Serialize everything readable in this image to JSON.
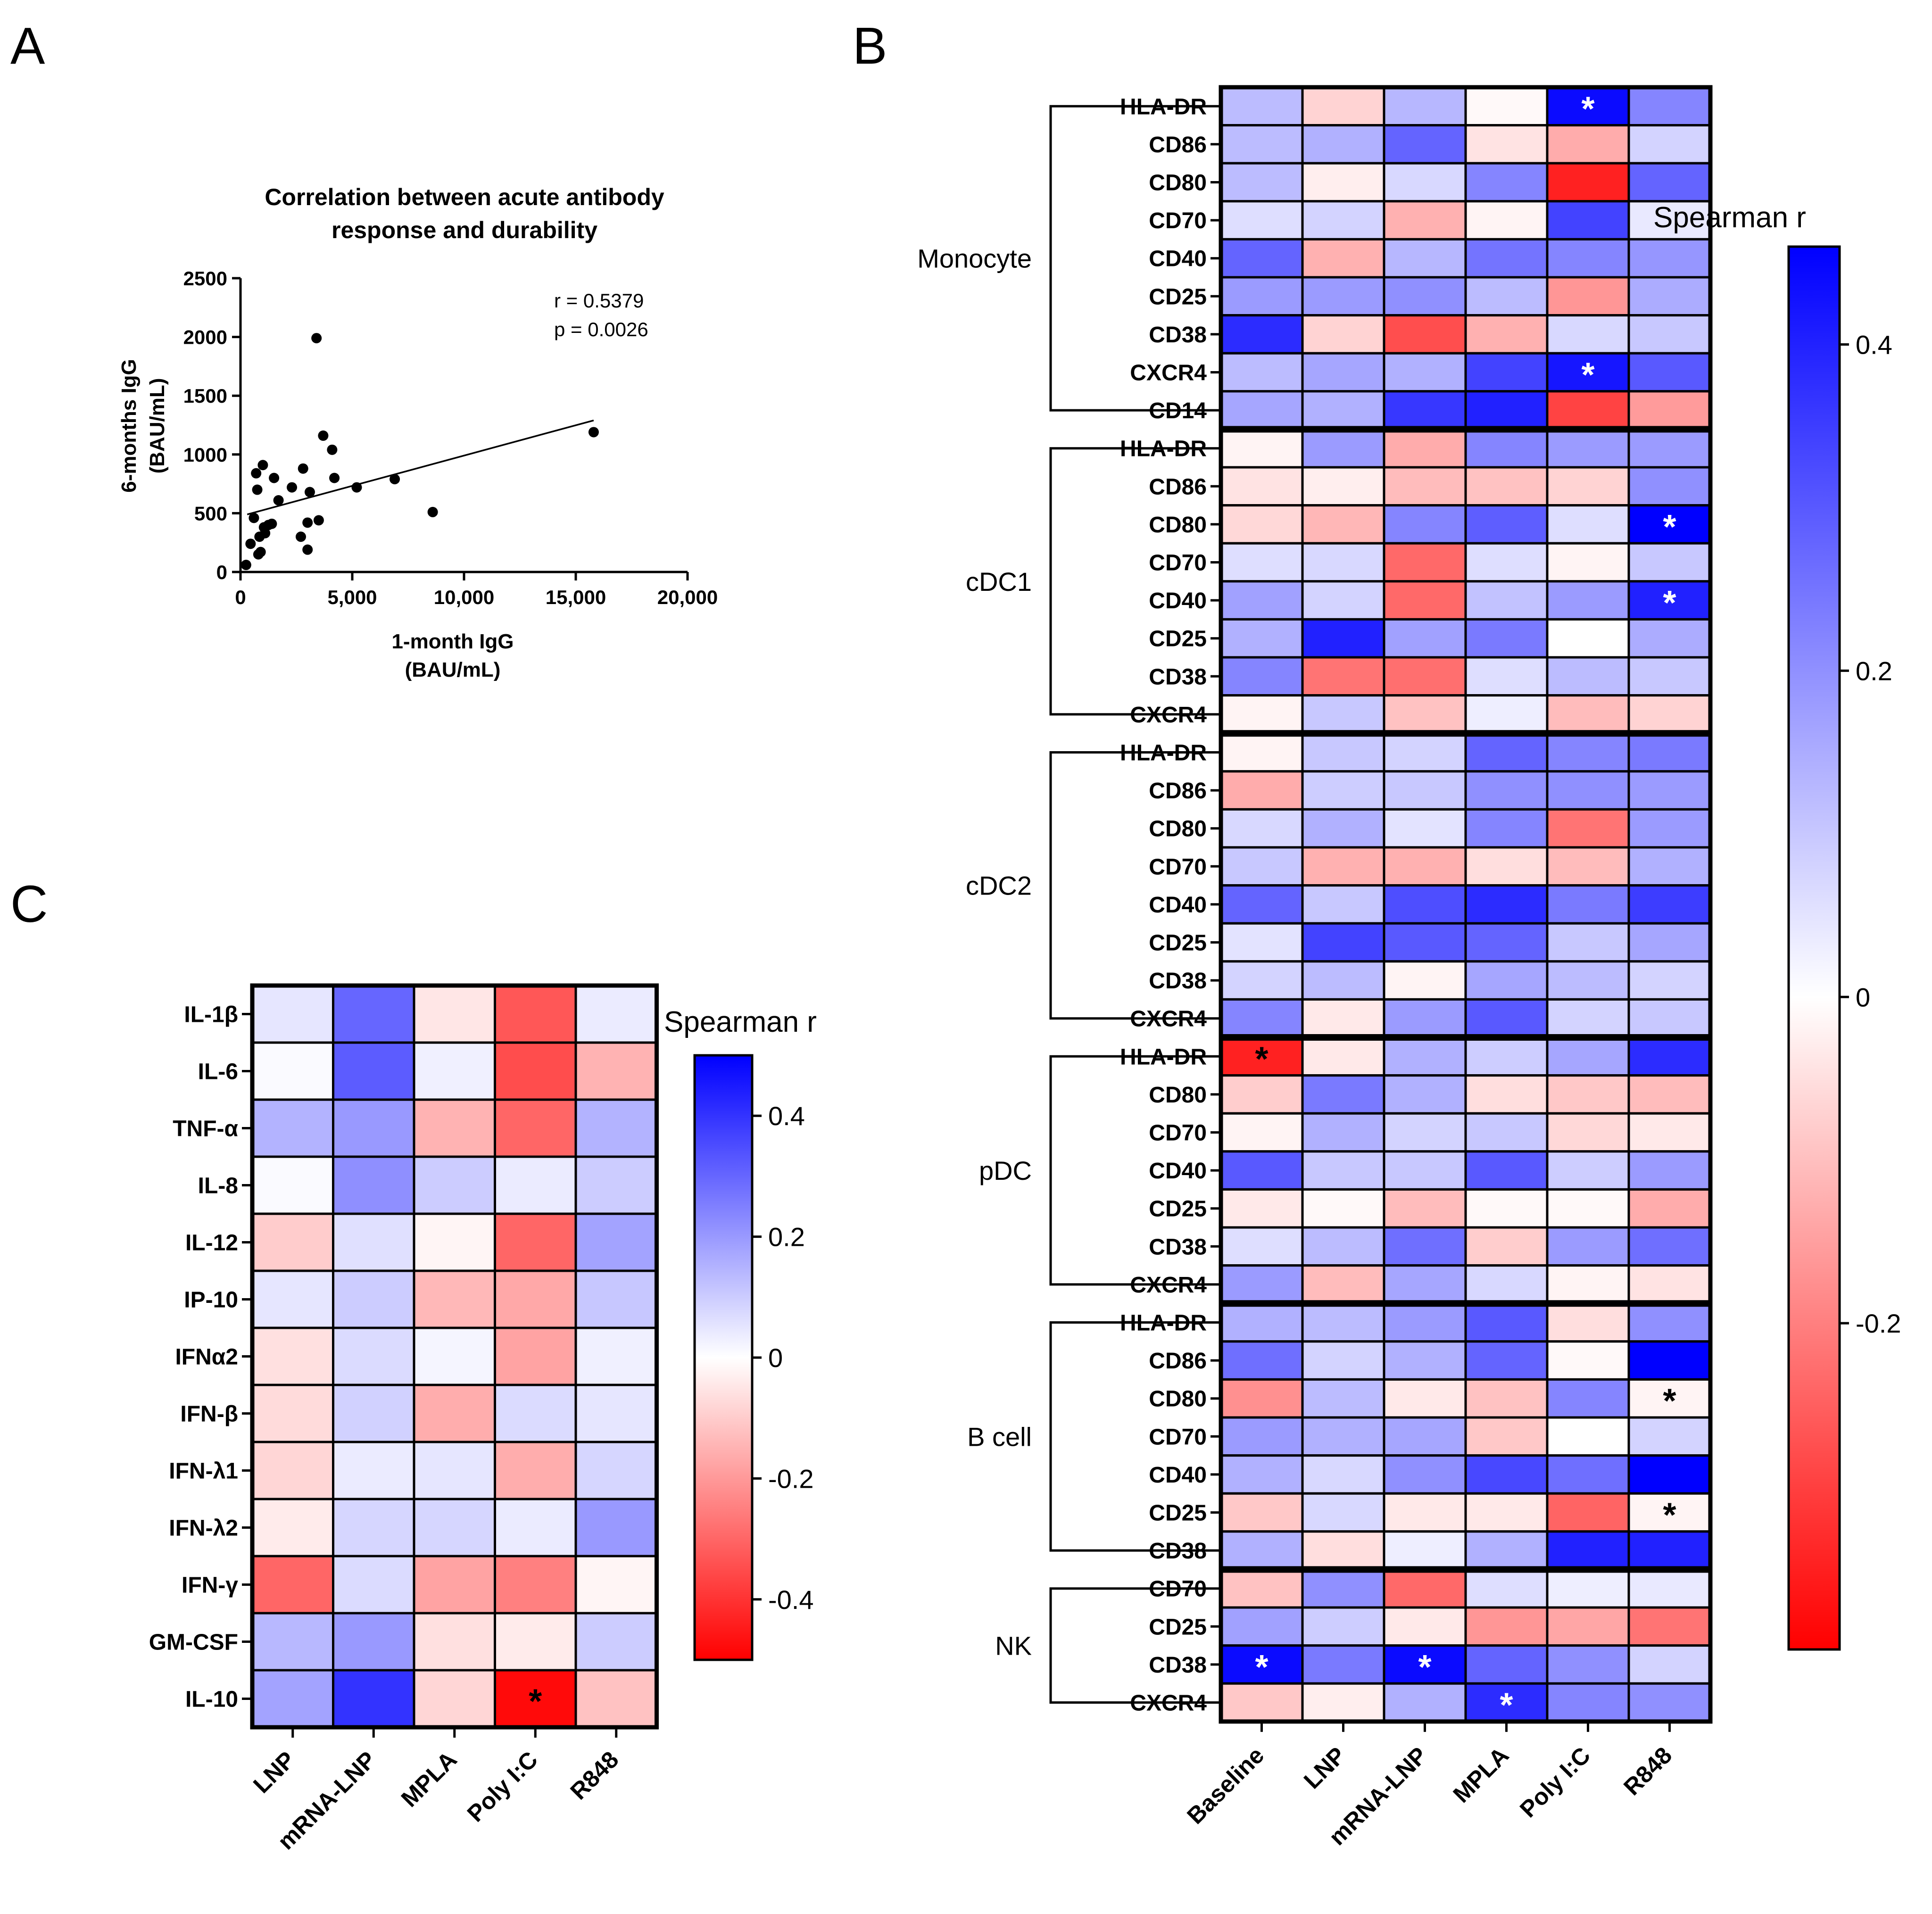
{
  "panels": {
    "A": "A",
    "B": "B",
    "C": "C"
  },
  "colors": {
    "negative": "#ff0000",
    "zero": "#ffffff",
    "positive": "#0000ff"
  },
  "chart_data": [
    {
      "id": "A",
      "type": "scatter",
      "title": [
        "Correlation between acute antibody",
        "response and durability"
      ],
      "xlabel": [
        "1-month IgG",
        "(BAU/mL)"
      ],
      "ylabel": [
        "6-months IgG",
        "(BAU/mL)"
      ],
      "xlim": [
        0,
        20000
      ],
      "ylim": [
        0,
        2500
      ],
      "xticks": [
        0,
        5000,
        10000,
        15000,
        20000
      ],
      "xtick_labels": [
        "0",
        "5,000",
        "10,000",
        "15,000",
        "20,000"
      ],
      "yticks": [
        0,
        500,
        1000,
        1500,
        2000,
        2500
      ],
      "ytick_labels": [
        "0",
        "500",
        "1000",
        "1500",
        "2000",
        "2500"
      ],
      "annotations": [
        "r = 0.5379",
        "p = 0.0026"
      ],
      "regression": {
        "x": [
          300,
          15800
        ],
        "y": [
          490,
          1290
        ]
      },
      "points": [
        [
          250,
          60
        ],
        [
          450,
          240
        ],
        [
          600,
          460
        ],
        [
          700,
          840
        ],
        [
          750,
          700
        ],
        [
          800,
          150
        ],
        [
          850,
          300
        ],
        [
          900,
          170
        ],
        [
          1000,
          910
        ],
        [
          1050,
          380
        ],
        [
          1100,
          330
        ],
        [
          1250,
          400
        ],
        [
          1400,
          410
        ],
        [
          1500,
          800
        ],
        [
          1700,
          610
        ],
        [
          2300,
          720
        ],
        [
          2700,
          300
        ],
        [
          2800,
          880
        ],
        [
          3000,
          420
        ],
        [
          3000,
          190
        ],
        [
          3100,
          680
        ],
        [
          3400,
          1990
        ],
        [
          3500,
          440
        ],
        [
          3700,
          1160
        ],
        [
          4100,
          1040
        ],
        [
          4200,
          800
        ],
        [
          5200,
          720
        ],
        [
          6900,
          790
        ],
        [
          8600,
          510
        ],
        [
          15800,
          1190
        ]
      ]
    },
    {
      "id": "B",
      "type": "heatmap",
      "columns": [
        "Baseline",
        "LNP",
        "mRNA-LNP",
        "MPLA",
        "Poly I:C",
        "R848"
      ],
      "colorbar": {
        "title": "Spearman r",
        "range": [
          -0.4,
          0.46
        ],
        "ticks": [
          0.4,
          0.2,
          0,
          -0.2
        ],
        "tick_labels": [
          "0.4",
          "0.2",
          "0",
          "-0.2"
        ]
      },
      "groups": [
        {
          "name": "Monocyte",
          "rows": [
            "HLA-DR",
            "CD86",
            "CD80",
            "CD70",
            "CD40",
            "CD25",
            "CD38",
            "CXCR4",
            "CD14"
          ]
        },
        {
          "name": "cDC1",
          "rows": [
            "HLA-DR",
            "CD86",
            "CD80",
            "CD70",
            "CD40",
            "CD25",
            "CD38",
            "CXCR4"
          ]
        },
        {
          "name": "cDC2",
          "rows": [
            "HLA-DR",
            "CD86",
            "CD80",
            "CD70",
            "CD40",
            "CD25",
            "CD38",
            "CXCR4"
          ]
        },
        {
          "name": "pDC",
          "rows": [
            "HLA-DR",
            "CD80",
            "CD70",
            "CD40",
            "CD25",
            "CD38",
            "CXCR4"
          ]
        },
        {
          "name": "B cell",
          "rows": [
            "HLA-DR",
            "CD86",
            "CD80",
            "CD70",
            "CD40",
            "CD25",
            "CD38"
          ]
        },
        {
          "name": "NK",
          "rows": [
            "CD70",
            "CD25",
            "CD38",
            "CXCR4"
          ]
        }
      ],
      "values": [
        [
          0.12,
          -0.08,
          0.13,
          -0.01,
          0.44,
          0.22
        ],
        [
          0.12,
          0.14,
          0.28,
          -0.05,
          -0.15,
          0.08
        ],
        [
          0.12,
          -0.03,
          0.07,
          0.22,
          -0.4,
          0.28
        ],
        [
          0.06,
          0.08,
          -0.14,
          -0.02,
          0.34,
          0.04
        ],
        [
          0.28,
          -0.14,
          0.13,
          0.25,
          0.22,
          0.19
        ],
        [
          0.18,
          0.18,
          0.2,
          0.12,
          -0.19,
          0.15
        ],
        [
          0.38,
          -0.08,
          -0.32,
          -0.14,
          0.07,
          0.1
        ],
        [
          0.12,
          0.16,
          0.14,
          0.34,
          0.42,
          0.3
        ],
        [
          0.16,
          0.14,
          0.36,
          0.4,
          -0.34,
          -0.18
        ],
        [
          -0.02,
          0.18,
          -0.15,
          0.22,
          0.18,
          0.18
        ],
        [
          -0.05,
          -0.03,
          -0.12,
          -0.11,
          -0.08,
          0.2
        ],
        [
          -0.07,
          -0.13,
          0.22,
          0.29,
          0.06,
          0.46
        ],
        [
          0.06,
          0.07,
          -0.27,
          0.06,
          -0.02,
          0.1
        ],
        [
          0.17,
          0.08,
          -0.27,
          0.11,
          0.18,
          0.4
        ],
        [
          0.14,
          0.4,
          0.17,
          0.24,
          0.0,
          0.15
        ],
        [
          0.22,
          -0.25,
          -0.26,
          0.06,
          0.12,
          0.1
        ],
        [
          -0.02,
          0.1,
          -0.11,
          0.03,
          -0.12,
          -0.08
        ],
        [
          -0.02,
          0.1,
          0.08,
          0.28,
          0.22,
          0.24
        ],
        [
          -0.15,
          0.09,
          0.1,
          0.2,
          0.2,
          0.18
        ],
        [
          0.07,
          0.14,
          0.05,
          0.22,
          -0.25,
          0.18
        ],
        [
          0.1,
          -0.14,
          -0.14,
          -0.06,
          -0.12,
          0.14
        ],
        [
          0.28,
          0.1,
          0.32,
          0.38,
          0.24,
          0.35
        ],
        [
          0.05,
          0.34,
          0.3,
          0.28,
          0.1,
          0.16
        ],
        [
          0.08,
          0.12,
          -0.02,
          0.16,
          0.12,
          0.08
        ],
        [
          0.22,
          -0.04,
          0.18,
          0.3,
          0.08,
          0.1
        ],
        [
          -0.4,
          -0.04,
          0.14,
          0.09,
          0.16,
          0.38
        ],
        [
          -0.09,
          0.24,
          0.14,
          -0.06,
          -0.1,
          -0.12
        ],
        [
          -0.02,
          0.14,
          0.08,
          0.1,
          -0.07,
          -0.04
        ],
        [
          0.3,
          0.1,
          0.1,
          0.3,
          0.09,
          0.18
        ],
        [
          -0.04,
          -0.01,
          -0.12,
          -0.01,
          -0.01,
          -0.15
        ],
        [
          0.06,
          0.12,
          0.26,
          -0.09,
          0.18,
          0.26
        ],
        [
          0.18,
          -0.12,
          0.16,
          0.07,
          -0.02,
          -0.05
        ],
        [
          0.14,
          0.12,
          0.18,
          0.3,
          -0.06,
          0.2
        ],
        [
          0.26,
          0.08,
          0.14,
          0.28,
          -0.01,
          0.46
        ],
        [
          -0.2,
          0.12,
          -0.04,
          -0.11,
          0.22,
          -0.02
        ],
        [
          0.18,
          0.14,
          0.16,
          -0.1,
          0.0,
          0.08
        ],
        [
          0.14,
          0.07,
          0.2,
          0.33,
          0.26,
          0.46
        ],
        [
          -0.1,
          0.07,
          -0.04,
          -0.04,
          -0.28,
          -0.02
        ],
        [
          0.14,
          -0.06,
          0.03,
          0.14,
          0.4,
          0.4
        ],
        [
          -0.11,
          0.2,
          -0.27,
          0.06,
          0.03,
          0.04
        ],
        [
          0.17,
          0.09,
          -0.04,
          -0.19,
          -0.16,
          -0.25
        ],
        [
          0.44,
          0.24,
          0.44,
          0.28,
          0.2,
          0.08
        ],
        [
          -0.1,
          -0.03,
          0.14,
          0.38,
          0.22,
          0.2
        ]
      ],
      "significant": [
        [
          0,
          4
        ],
        [
          7,
          4
        ],
        [
          11,
          5
        ],
        [
          13,
          5
        ],
        [
          25,
          0
        ],
        [
          34,
          5
        ],
        [
          37,
          5
        ],
        [
          41,
          0
        ],
        [
          41,
          2
        ],
        [
          42,
          3
        ]
      ]
    },
    {
      "id": "C",
      "type": "heatmap",
      "columns": [
        "LNP",
        "mRNA-LNP",
        "MPLA",
        "Poly I:C",
        "R848"
      ],
      "rows": [
        "IL-1β",
        "IL-6",
        "TNF-α",
        "IL-8",
        "IL-12",
        "IP-10",
        "IFNα2",
        "IFN-β",
        "IFN-λ1",
        "IFN-λ2",
        "IFN-γ",
        "GM-CSF",
        "IL-10"
      ],
      "colorbar": {
        "title": "Spearman r",
        "range": [
          -0.5,
          0.5
        ],
        "ticks": [
          0.4,
          0.2,
          0,
          -0.2,
          -0.4
        ],
        "tick_labels": [
          "0.4",
          "0.2",
          "0",
          "-0.2",
          "-0.4"
        ]
      },
      "values": [
        [
          0.05,
          0.3,
          -0.05,
          -0.33,
          0.04
        ],
        [
          0.01,
          0.32,
          0.03,
          -0.35,
          -0.15
        ],
        [
          0.15,
          0.2,
          -0.15,
          -0.3,
          0.15
        ],
        [
          0.01,
          0.22,
          0.1,
          0.04,
          0.1
        ],
        [
          -0.1,
          0.06,
          -0.02,
          -0.3,
          0.18
        ],
        [
          0.05,
          0.1,
          -0.14,
          -0.17,
          0.11
        ],
        [
          -0.06,
          0.07,
          0.02,
          -0.18,
          0.03
        ],
        [
          -0.07,
          0.09,
          -0.16,
          0.07,
          0.05
        ],
        [
          -0.08,
          0.04,
          0.05,
          -0.16,
          0.08
        ],
        [
          -0.04,
          0.08,
          0.08,
          0.04,
          0.2
        ],
        [
          -0.3,
          0.07,
          -0.18,
          -0.25,
          -0.02
        ],
        [
          0.14,
          0.2,
          -0.06,
          -0.04,
          0.1
        ],
        [
          0.18,
          0.4,
          -0.08,
          -0.48,
          -0.12
        ]
      ],
      "significant": [
        [
          12,
          3
        ]
      ]
    }
  ]
}
